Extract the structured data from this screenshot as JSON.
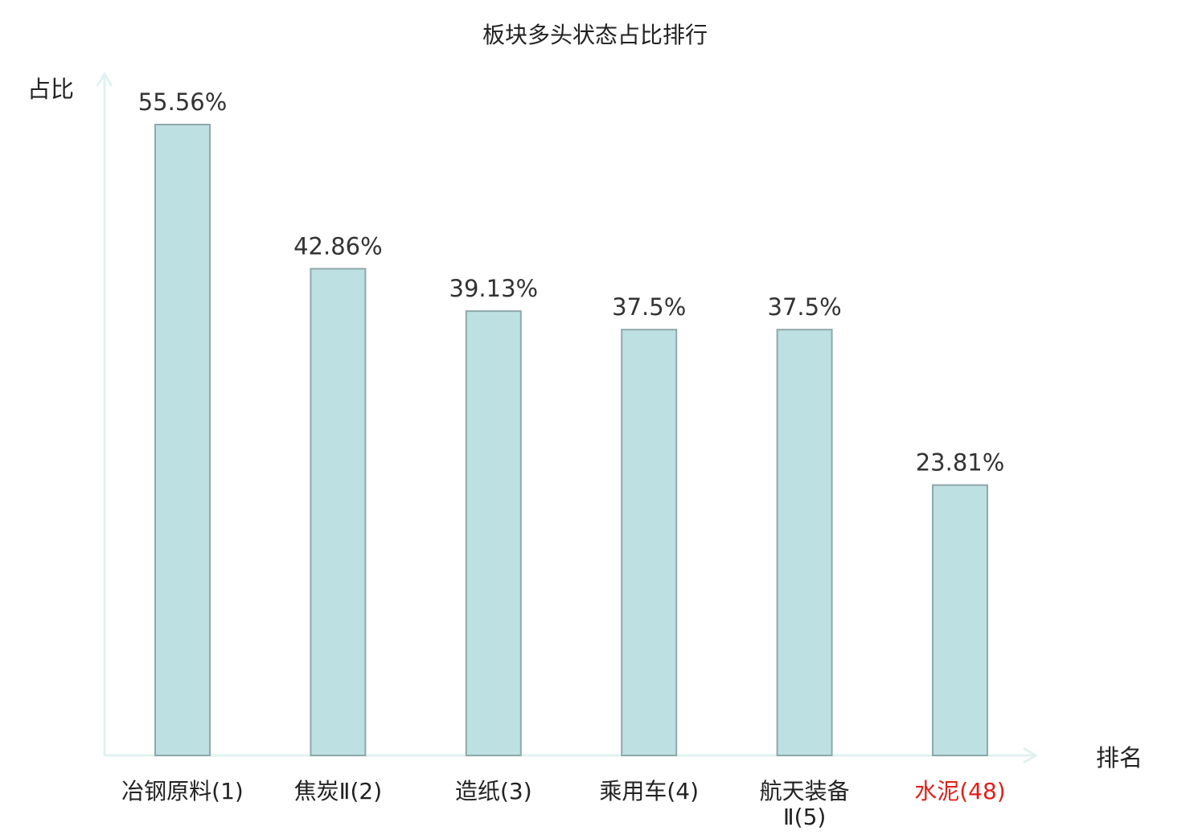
{
  "chart_data": {
    "type": "bar",
    "title": "板块多头状态占比排行",
    "ylabel": "占比",
    "xlabel": "排名",
    "categories": [
      [
        "冶钢原料(1)"
      ],
      [
        "焦炭Ⅱ(2)"
      ],
      [
        "造纸(3)"
      ],
      [
        "乘用车(4)"
      ],
      [
        "航天装备",
        "Ⅱ(5)"
      ],
      [
        "水泥(48)"
      ]
    ],
    "values": [
      55.56,
      42.86,
      39.13,
      37.5,
      37.5,
      23.81
    ],
    "value_labels": [
      "55.56%",
      "42.86%",
      "39.13%",
      "37.5%",
      "37.5%",
      "23.81%"
    ],
    "highlight_index": 5,
    "ylim": [
      0,
      55.56
    ],
    "grid": false,
    "legend": "none",
    "colors": {
      "bar_fill": "#bde0e3",
      "bar_stroke": "#8fa8ab",
      "axis": "#e0f2f0",
      "text": "#222222",
      "value_text": "#333333",
      "highlight_text": "#e0201b"
    }
  }
}
